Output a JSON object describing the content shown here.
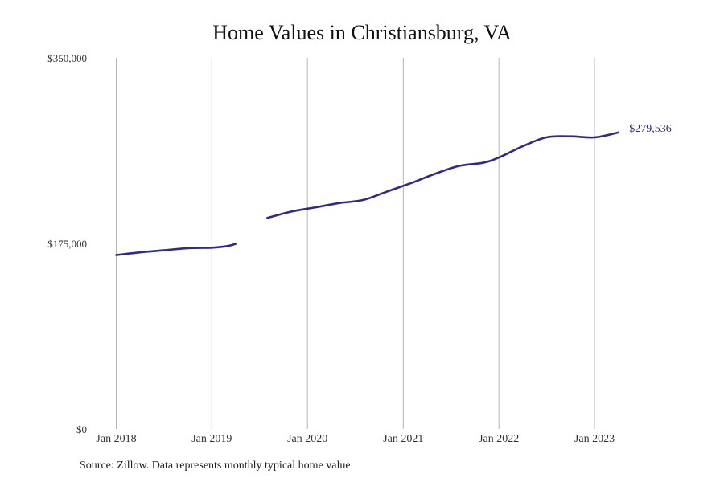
{
  "chart_data": {
    "type": "line",
    "title": "Home Values in Christiansburg, VA",
    "xlabel": "",
    "ylabel": "",
    "ylim": [
      0,
      350000
    ],
    "y_ticks": [
      {
        "value": 0,
        "label": "$0"
      },
      {
        "value": 175000,
        "label": "$175,000"
      },
      {
        "value": 350000,
        "label": "$350,000"
      }
    ],
    "x_ticks": [
      {
        "date": "2018-01",
        "label": "Jan 2018"
      },
      {
        "date": "2019-01",
        "label": "Jan 2019"
      },
      {
        "date": "2020-01",
        "label": "Jan 2020"
      },
      {
        "date": "2021-01",
        "label": "Jan 2021"
      },
      {
        "date": "2022-01",
        "label": "Jan 2022"
      },
      {
        "date": "2023-01",
        "label": "Jan 2023"
      }
    ],
    "grid": "vertical",
    "line_color": "#2e2a8c",
    "end_label": "$279,536",
    "series": [
      {
        "segments": [
          [
            {
              "x": "2018-01",
              "y": 164000
            },
            {
              "x": "2018-04",
              "y": 166500
            },
            {
              "x": "2018-07",
              "y": 168500
            },
            {
              "x": "2018-10",
              "y": 170500
            },
            {
              "x": "2019-01",
              "y": 171000
            },
            {
              "x": "2019-03",
              "y": 172500
            },
            {
              "x": "2019-04",
              "y": 174500
            }
          ],
          [
            {
              "x": "2019-08",
              "y": 199000
            },
            {
              "x": "2019-11",
              "y": 205000
            },
            {
              "x": "2020-02",
              "y": 209000
            },
            {
              "x": "2020-05",
              "y": 213000
            },
            {
              "x": "2020-08",
              "y": 216000
            },
            {
              "x": "2020-11",
              "y": 224000
            },
            {
              "x": "2021-02",
              "y": 232000
            },
            {
              "x": "2021-05",
              "y": 240500
            },
            {
              "x": "2021-08",
              "y": 248000
            },
            {
              "x": "2021-11",
              "y": 251000
            },
            {
              "x": "2022-01",
              "y": 256000
            },
            {
              "x": "2022-04",
              "y": 266500
            },
            {
              "x": "2022-07",
              "y": 275000
            },
            {
              "x": "2022-10",
              "y": 276000
            },
            {
              "x": "2023-01",
              "y": 275000
            },
            {
              "x": "2023-04",
              "y": 279536
            }
          ]
        ]
      }
    ]
  },
  "source_note": "Source: Zillow. Data represents monthly typical home value"
}
